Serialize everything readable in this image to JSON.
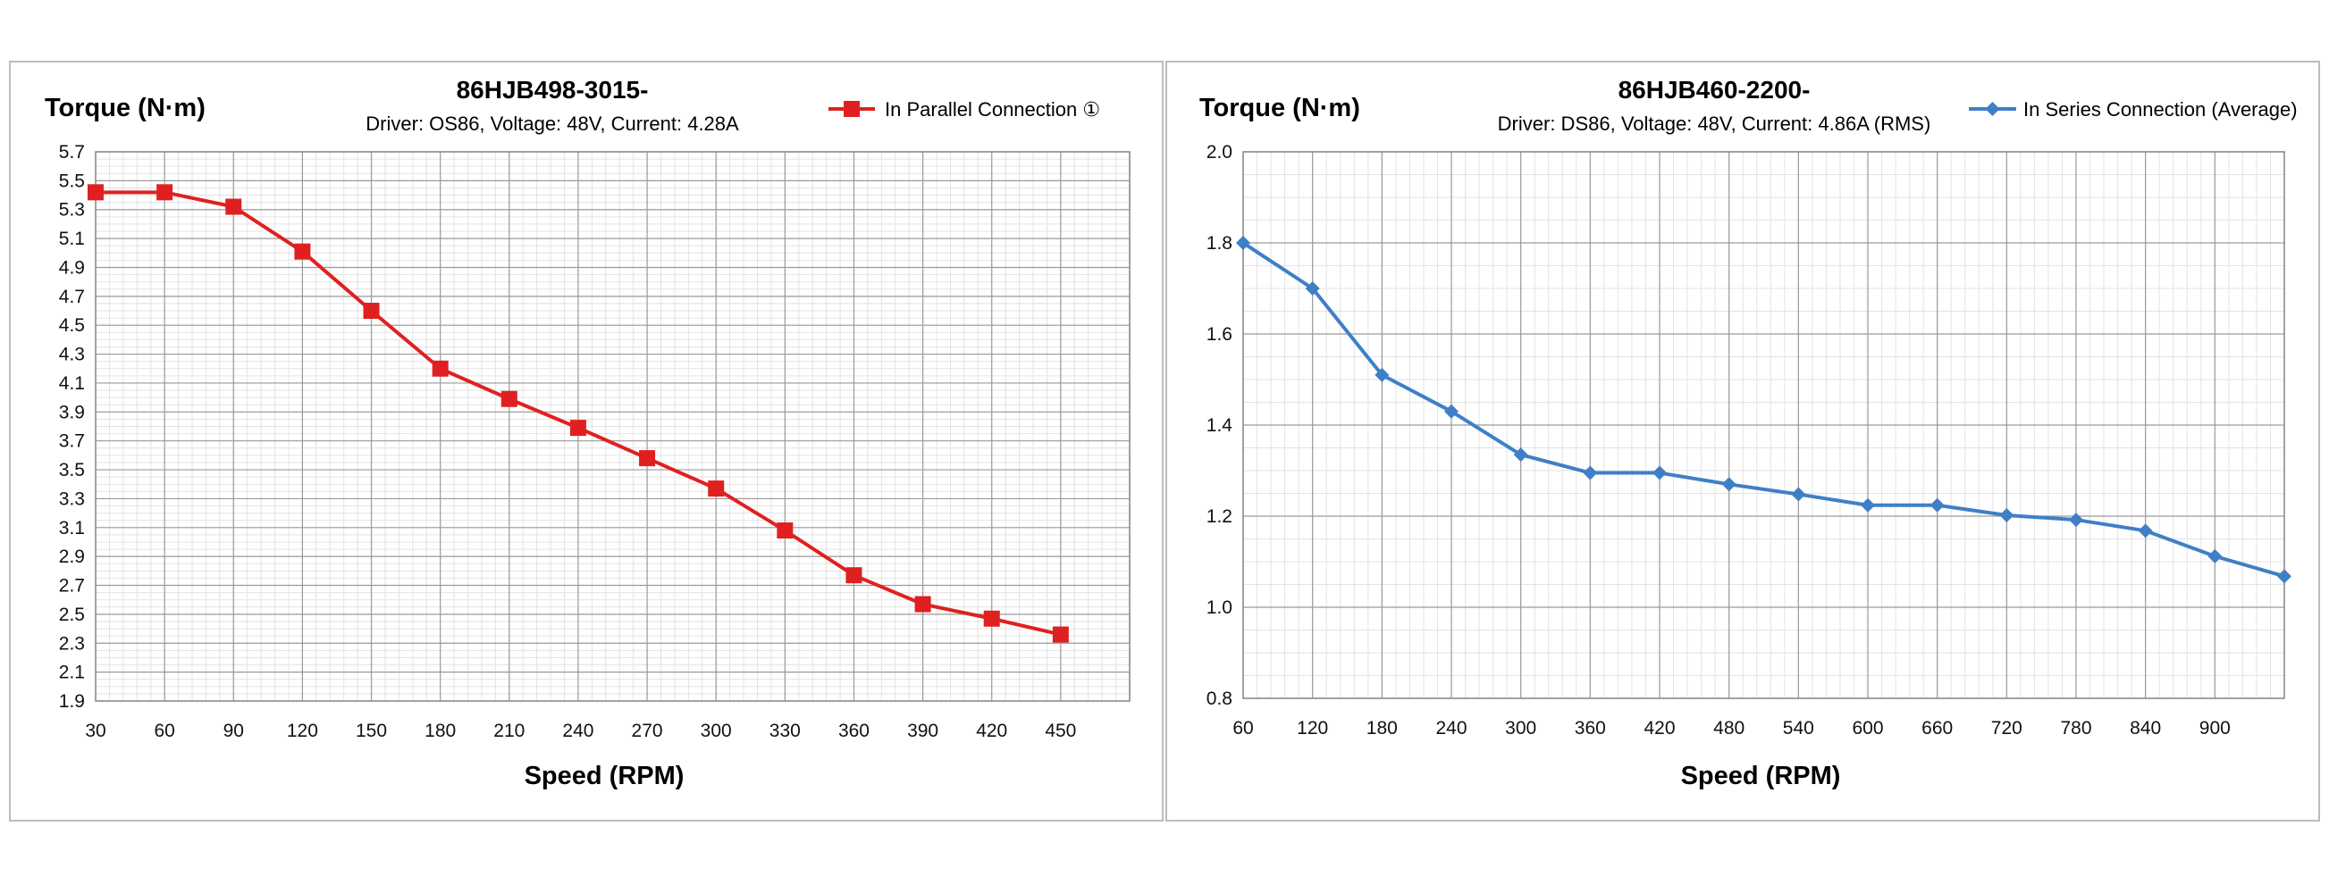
{
  "chart_data": [
    {
      "type": "line",
      "title": "86HJB498-3015-",
      "subtitle": "Driver: OS86, Voltage: 48V, Current: 4.28A",
      "ylabel": "Torque (N·m)",
      "xlabel": "Speed (RPM)",
      "x": [
        30,
        60,
        90,
        120,
        150,
        180,
        210,
        240,
        270,
        300,
        330,
        360,
        390,
        420,
        450
      ],
      "x_tick_labels": [
        "30",
        "60",
        "90",
        "120",
        "150",
        "180",
        "210",
        "240",
        "270",
        "300",
        "330",
        "360",
        "390",
        "420",
        "450"
      ],
      "y_tick_labels": [
        "1.9",
        "2.1",
        "2.3",
        "2.5",
        "2.7",
        "2.9",
        "3.1",
        "3.3",
        "3.5",
        "3.7",
        "3.9",
        "4.1",
        "4.3",
        "4.5",
        "4.7",
        "4.9",
        "5.1",
        "5.3",
        "5.5",
        "5.7"
      ],
      "xlim": [
        30,
        480
      ],
      "ylim": [
        1.9,
        5.7
      ],
      "grid": true,
      "legend_position": "top-right",
      "series": [
        {
          "name": "In Parallel Connection ①",
          "color": "#e02020",
          "marker": "square",
          "values": [
            5.42,
            5.42,
            5.32,
            5.01,
            4.6,
            4.2,
            3.99,
            3.79,
            3.58,
            3.37,
            3.08,
            2.77,
            2.57,
            2.47,
            2.36
          ]
        }
      ]
    },
    {
      "type": "line",
      "title": "86HJB460-2200-",
      "subtitle": "Driver: DS86, Voltage: 48V, Current: 4.86A (RMS)",
      "ylabel": "Torque (N·m)",
      "xlabel": "Speed (RPM)",
      "x": [
        60,
        120,
        180,
        240,
        300,
        360,
        420,
        480,
        540,
        600,
        660,
        720,
        780,
        840,
        900,
        960
      ],
      "x_tick_labels": [
        "60",
        "120",
        "180",
        "240",
        "300",
        "360",
        "420",
        "480",
        "540",
        "600",
        "660",
        "720",
        "780",
        "840",
        "900"
      ],
      "y_tick_labels": [
        "0.8",
        "1.0",
        "1.2",
        "1.4",
        "1.6",
        "1.8",
        "2.0"
      ],
      "xlim": [
        60,
        960
      ],
      "ylim": [
        0.8,
        2.0
      ],
      "grid": true,
      "legend_position": "top-right",
      "series": [
        {
          "name": "In Series Connection (Average)",
          "color": "#3f7fc6",
          "marker": "diamond",
          "values": [
            1.8,
            1.7,
            1.51,
            1.43,
            1.335,
            1.295,
            1.295,
            1.27,
            1.248,
            1.224,
            1.224,
            1.202,
            1.192,
            1.168,
            1.112,
            1.068
          ]
        }
      ]
    }
  ]
}
